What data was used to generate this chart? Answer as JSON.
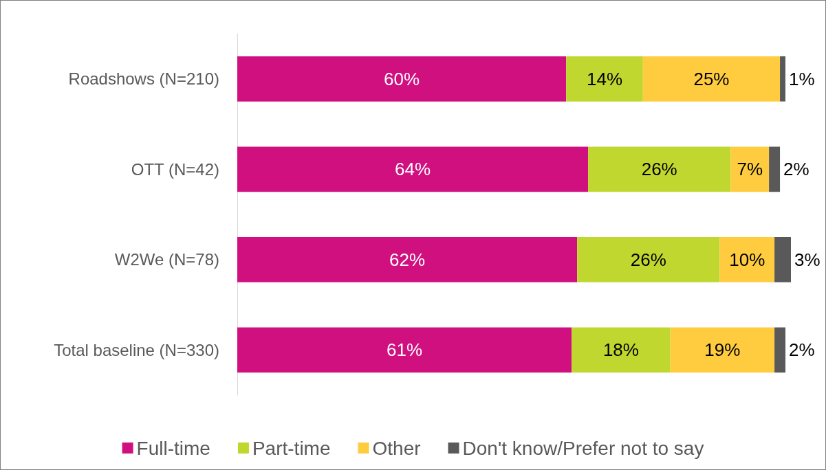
{
  "chart_data": {
    "type": "bar",
    "orientation": "horizontal",
    "stacked": true,
    "legend": "bottom",
    "categories": [
      "Roadshows (N=210)",
      "OTT (N=42)",
      "W2We (N=78)",
      "Total baseline (N=330)"
    ],
    "series": [
      {
        "name": "Full-time",
        "color": "#d0107f",
        "values": [
          60,
          64,
          62,
          61
        ],
        "value_labels": [
          "60%",
          "64%",
          "62%",
          "61%"
        ]
      },
      {
        "name": "Part-time",
        "color": "#c0d72f",
        "values": [
          14,
          26,
          26,
          18
        ],
        "value_labels": [
          "14%",
          "26%",
          "26%",
          "18%"
        ]
      },
      {
        "name": "Other",
        "color": "#ffcc3f",
        "values": [
          25,
          7,
          10,
          19
        ],
        "value_labels": [
          "25%",
          "7%",
          "10%",
          "19%"
        ]
      },
      {
        "name": "Don't know/Prefer not to say",
        "color": "#595959",
        "values": [
          1,
          2,
          3,
          2
        ],
        "value_labels": [
          "1%",
          "2%",
          "3%",
          "2%"
        ]
      }
    ]
  }
}
